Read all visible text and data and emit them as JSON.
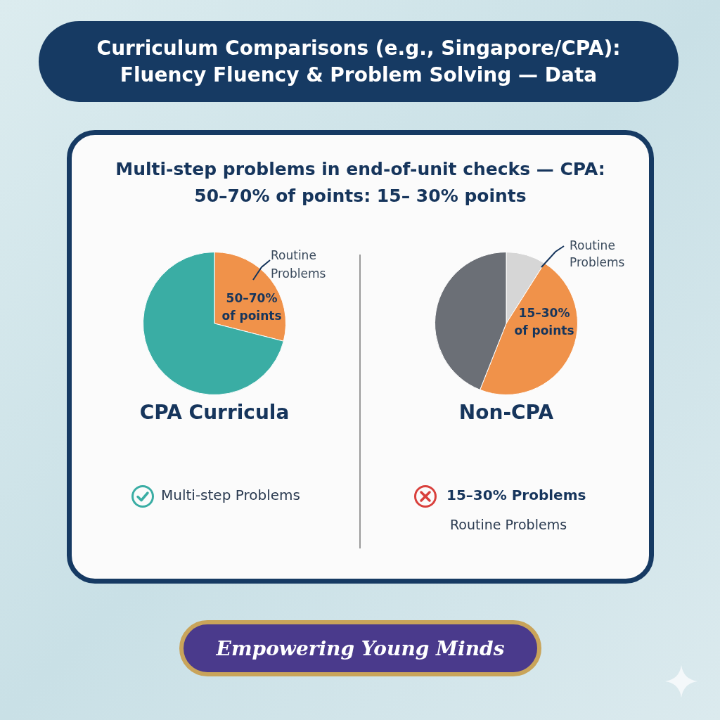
{
  "chart_data": [
    {
      "type": "other",
      "title": "Curriculum Comparisons (e.g., Singapore/CPA): Fluency Fluency & Problem Solving — Data",
      "subtitle": "Multi-step problems in end-of-unit checks — CPA: 50–70% of points: 15– 30% points",
      "annotations": [
        "Empowering Young Minds"
      ]
    },
    {
      "type": "pie",
      "title": "CPA Curricula",
      "categories": [
        null,
        null
      ],
      "values": [
        29,
        71
      ],
      "colors": [
        "#f0924a",
        "#3aada4"
      ],
      "annotations": [
        "Routine Problems",
        "50–70% of points",
        "Multi-step Problems"
      ]
    },
    {
      "type": "pie",
      "title": "Non-CPA",
      "categories": [
        null,
        null,
        null
      ],
      "values": [
        9,
        47,
        44
      ],
      "colors": [
        "#d6d6d6",
        "#f0924a",
        "#6b6f76"
      ],
      "annotations": [
        "Routine Problems",
        "15–30% of points",
        "15–30% Problems",
        "Routine Problems"
      ]
    }
  ]
}
